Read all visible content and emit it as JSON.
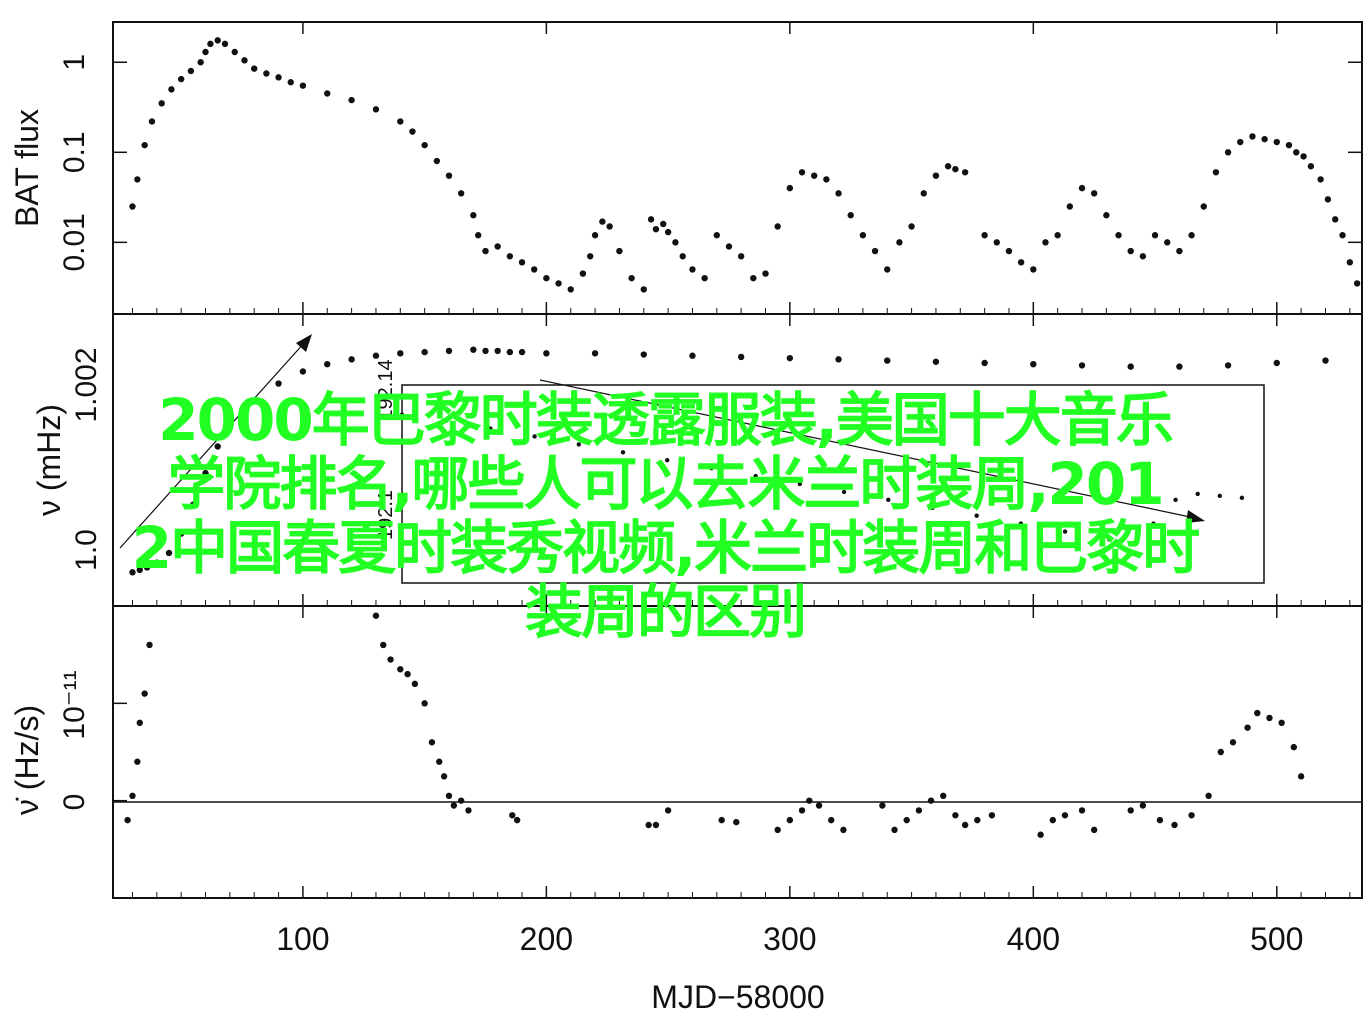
{
  "chart_data": {
    "type": "scatter",
    "x_axis": {
      "label": "MJD−58000",
      "ticks": [
        100,
        200,
        300,
        400,
        500
      ],
      "range": [
        22,
        535
      ]
    },
    "panels": [
      {
        "id": "flux",
        "ylabel": "BAT flux",
        "yscale": "log",
        "ylim": [
          0.0016,
          2.8
        ],
        "ytick_values": [
          0.01,
          0.1,
          1
        ],
        "ytick_labels": [
          "0.01",
          "0.1",
          "1"
        ],
        "series": [
          {
            "x": [
              30,
              32,
              35,
              38,
              42,
              46,
              50,
              54,
              58,
              60,
              62,
              65,
              68,
              72,
              76,
              80,
              85,
              90,
              95,
              100,
              110,
              120,
              130,
              140,
              145,
              150,
              155,
              160,
              165,
              170,
              172,
              175,
              180,
              185,
              190,
              195,
              200,
              205,
              210,
              215,
              218,
              220,
              223,
              226,
              230,
              235,
              240,
              243,
              245,
              248,
              250,
              253,
              256,
              260,
              265,
              270,
              275,
              280,
              285,
              290,
              295,
              300,
              305,
              310,
              315,
              320,
              325,
              330,
              335,
              340,
              345,
              350,
              355,
              360,
              365,
              368,
              372,
              380,
              385,
              390,
              395,
              400,
              405,
              410,
              415,
              420,
              425,
              430,
              435,
              440,
              445,
              450,
              455,
              460,
              465,
              470,
              475,
              480,
              485,
              490,
              495,
              500,
              505,
              508,
              511,
              514,
              518,
              521,
              524,
              527,
              530,
              533
            ],
            "y": [
              0.025,
              0.05,
              0.12,
              0.22,
              0.35,
              0.5,
              0.65,
              0.8,
              1.0,
              1.3,
              1.6,
              1.75,
              1.6,
              1.3,
              1.05,
              0.85,
              0.75,
              0.68,
              0.6,
              0.55,
              0.45,
              0.38,
              0.3,
              0.22,
              0.17,
              0.12,
              0.08,
              0.055,
              0.035,
              0.02,
              0.012,
              0.008,
              0.009,
              0.007,
              0.006,
              0.005,
              0.004,
              0.0035,
              0.003,
              0.0045,
              0.007,
              0.012,
              0.017,
              0.015,
              0.008,
              0.004,
              0.003,
              0.018,
              0.014,
              0.016,
              0.013,
              0.01,
              0.007,
              0.005,
              0.004,
              0.012,
              0.009,
              0.007,
              0.004,
              0.0045,
              0.015,
              0.04,
              0.06,
              0.055,
              0.05,
              0.035,
              0.02,
              0.012,
              0.008,
              0.005,
              0.01,
              0.015,
              0.035,
              0.055,
              0.07,
              0.065,
              0.06,
              0.012,
              0.01,
              0.008,
              0.006,
              0.005,
              0.01,
              0.012,
              0.025,
              0.04,
              0.035,
              0.02,
              0.012,
              0.008,
              0.007,
              0.012,
              0.01,
              0.008,
              0.012,
              0.025,
              0.06,
              0.1,
              0.13,
              0.15,
              0.14,
              0.13,
              0.12,
              0.1,
              0.09,
              0.07,
              0.05,
              0.03,
              0.018,
              0.012,
              0.006,
              0.0035
            ]
          }
        ]
      },
      {
        "id": "nu",
        "ylabel": "ν (mHz)",
        "yscale": "linear",
        "ylim": [
          0,
          1
        ],
        "ytick_labels": [
          "1.002",
          "1.0"
        ],
        "series": [
          {
            "x": [
              30,
              33,
              36,
              40,
              45,
              50,
              55,
              60,
              65,
              70,
              75,
              80,
              90,
              100,
              110,
              120,
              130,
              140,
              150,
              160,
              170,
              175,
              180,
              185,
              190,
              200,
              220,
              240,
              260,
              280,
              300,
              320,
              340,
              360,
              380,
              400,
              420,
              440,
              460,
              480,
              500,
              520
            ],
            "y": [
              0.04,
              0.05,
              0.06,
              0.08,
              0.12,
              0.2,
              0.32,
              0.45,
              0.56,
              0.64,
              0.7,
              0.75,
              0.82,
              0.87,
              0.9,
              0.92,
              0.935,
              0.945,
              0.95,
              0.955,
              0.96,
              0.955,
              0.955,
              0.95,
              0.95,
              0.945,
              0.945,
              0.94,
              0.935,
              0.93,
              0.925,
              0.92,
              0.915,
              0.91,
              0.905,
              0.9,
              0.895,
              0.89,
              0.89,
              0.895,
              0.905,
              0.915
            ]
          }
        ],
        "inset": {
          "ytick_label": "192.14",
          "ytick_label_2": "192.1",
          "series": [
            {
              "x": [
                140,
                160,
                180,
                200,
                220,
                240,
                260,
                280,
                300,
                320,
                340,
                360,
                380,
                400,
                420,
                440,
                460,
                470,
                480,
                490,
                500,
                510,
                520
              ],
              "y": [
                0.85,
                0.82,
                0.78,
                0.74,
                0.7,
                0.66,
                0.62,
                0.58,
                0.54,
                0.5,
                0.46,
                0.42,
                0.38,
                0.34,
                0.3,
                0.26,
                0.22,
                0.2,
                0.3,
                0.42,
                0.45,
                0.44,
                0.43
              ]
            }
          ]
        }
      },
      {
        "id": "nudot",
        "ylabel": "ν̇ (Hz/s)",
        "yscale": "linear",
        "ylim": [
          -1e-11,
          2e-11
        ],
        "ytick_values": [
          0,
          1e-11
        ],
        "ytick_labels": [
          "0",
          "10⁻¹¹"
        ],
        "zero_line": true,
        "series": [
          {
            "x": [
              28,
              30,
              32,
              33,
              35,
              37,
              130,
              133,
              136,
              140,
              143,
              146,
              150,
              153,
              156,
              158,
              160,
              162,
              165,
              168,
              186,
              188,
              242,
              245,
              250,
              272,
              278,
              295,
              300,
              305,
              308,
              312,
              317,
              322,
              338,
              343,
              348,
              353,
              358,
              363,
              368,
              372,
              377,
              383,
              403,
              408,
              413,
              420,
              425,
              440,
              445,
              452,
              458,
              465,
              472,
              477,
              482,
              488,
              492,
              497,
              502,
              507,
              510
            ],
            "y": [
              -0.2,
              0.05,
              0.4,
              0.8,
              1.1,
              1.6,
              1.9,
              1.6,
              1.45,
              1.35,
              1.3,
              1.2,
              1.0,
              0.6,
              0.4,
              0.25,
              0.05,
              -0.05,
              0.0,
              -0.1,
              -0.15,
              -0.2,
              -0.25,
              -0.25,
              -0.1,
              -0.2,
              -0.22,
              -0.3,
              -0.2,
              -0.1,
              0.0,
              -0.05,
              -0.2,
              -0.3,
              -0.05,
              -0.3,
              -0.2,
              -0.1,
              0.0,
              0.05,
              -0.15,
              -0.25,
              -0.2,
              -0.15,
              -0.35,
              -0.2,
              -0.15,
              -0.1,
              -0.3,
              -0.1,
              -0.05,
              -0.2,
              -0.25,
              -0.15,
              0.05,
              0.5,
              0.6,
              0.75,
              0.9,
              0.85,
              0.8,
              0.55,
              0.25
            ]
          }
        ]
      }
    ]
  },
  "overlay": {
    "line1": "2000年巴黎时装透露服装,美国十大音乐",
    "line2": "学院排名,哪些人可以去米兰时装周,201",
    "line3": "2中国春夏时装秀视频,米兰时装周和巴黎时",
    "line4": "装周的区别"
  }
}
